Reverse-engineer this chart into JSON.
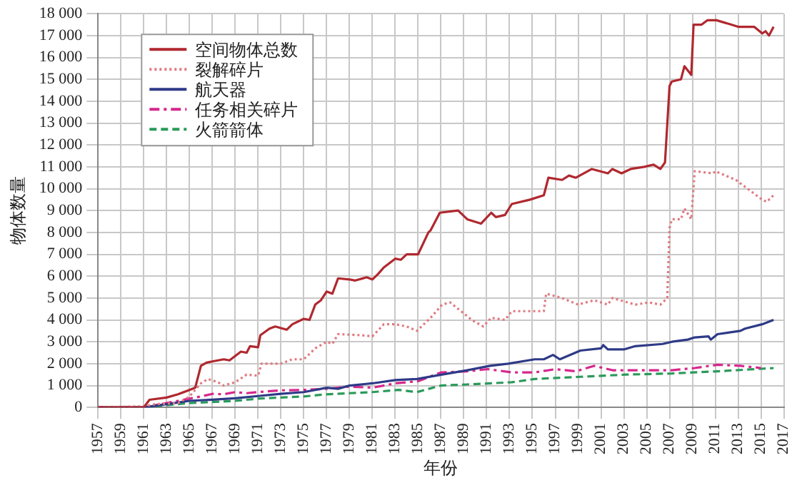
{
  "chart_data": {
    "type": "line",
    "xlabel": "年份",
    "ylabel": "物体数量",
    "xlim": [
      1957,
      2017
    ],
    "ylim": [
      0,
      18000
    ],
    "xticks": [
      1957,
      1959,
      1961,
      1963,
      1965,
      1967,
      1969,
      1971,
      1973,
      1975,
      1977,
      1979,
      1981,
      1983,
      1985,
      1987,
      1989,
      1991,
      1993,
      1995,
      1997,
      1999,
      2001,
      2003,
      2005,
      2007,
      2009,
      2011,
      2013,
      2015,
      2017
    ],
    "yticks": [
      {
        "value": 0,
        "label": "0"
      },
      {
        "value": 1000,
        "label": "1 000"
      },
      {
        "value": 2000,
        "label": "2 000"
      },
      {
        "value": 3000,
        "label": "3 000"
      },
      {
        "value": 4000,
        "label": "4 000"
      },
      {
        "value": 5000,
        "label": "5 000"
      },
      {
        "value": 6000,
        "label": "6 000"
      },
      {
        "value": 7000,
        "label": "7 000"
      },
      {
        "value": 8000,
        "label": "8 000"
      },
      {
        "value": 9000,
        "label": "9 000"
      },
      {
        "value": 10000,
        "label": "10 000"
      },
      {
        "value": 11000,
        "label": "11 000"
      },
      {
        "value": 12000,
        "label": "12 000"
      },
      {
        "value": 13000,
        "label": "13 000"
      },
      {
        "value": 14000,
        "label": "14 000"
      },
      {
        "value": 15000,
        "label": "15 000"
      },
      {
        "value": 16000,
        "label": "16 000"
      },
      {
        "value": 17000,
        "label": "17 000"
      },
      {
        "value": 18000,
        "label": "18 000"
      }
    ],
    "grid": true,
    "legend": "top left",
    "marker": "none",
    "series": [
      {
        "name": "空间物体总数",
        "color": "#b0282f",
        "line_style": "solid",
        "x": [
          1957,
          1961,
          1961.5,
          1963,
          1964,
          1965,
          1965.5,
          1966,
          1966.5,
          1967,
          1968,
          1968.5,
          1969.5,
          1970,
          1970.3,
          1971,
          1971.2,
          1972,
          1972.5,
          1973.5,
          1974,
          1975,
          1975.5,
          1976,
          1976.5,
          1977,
          1977.5,
          1978,
          1979,
          1979.5,
          1980.5,
          1981,
          1981.5,
          1982,
          1983,
          1983.5,
          1984,
          1985,
          1985.9,
          1986.1,
          1986.9,
          1988.5,
          1989.3,
          1990.5,
          1991.4,
          1991.8,
          1992.6,
          1993.2,
          1994.8,
          1996.0,
          1996.4,
          1997.6,
          1998.2,
          1998.8,
          2000.2,
          2001.6,
          2002.0,
          2002.8,
          2003.6,
          2004.8,
          2005.6,
          2006.2,
          2006.6,
          2007.0,
          2007.2,
          2008.0,
          2008.3,
          2008.9,
          2009.1,
          2009.8,
          2010.3,
          2011.1,
          2012.4,
          2013.0,
          2014.4,
          2015.1,
          2015.4,
          2015.7,
          2016.1
        ],
        "values": [
          0,
          0,
          350,
          450,
          600,
          800,
          900,
          1900,
          2050,
          2100,
          2200,
          2150,
          2550,
          2500,
          2800,
          2750,
          3300,
          3600,
          3700,
          3550,
          3800,
          4050,
          4000,
          4700,
          4900,
          5300,
          5200,
          5900,
          5850,
          5800,
          5950,
          5850,
          6100,
          6400,
          6800,
          6750,
          7000,
          7000,
          8000,
          8100,
          8900,
          9000,
          8600,
          8400,
          8900,
          8700,
          8800,
          9300,
          9500,
          9700,
          10500,
          10400,
          10600,
          10500,
          10900,
          10700,
          10900,
          10700,
          10900,
          11000,
          11100,
          10900,
          11200,
          14700,
          14900,
          15000,
          15600,
          15200,
          17500,
          17500,
          17700,
          17700,
          17500,
          17400,
          17400,
          17100,
          17200,
          17000,
          17400
        ]
      },
      {
        "name": "裂解碎片",
        "color": "#e07a80",
        "line_style": "dotted",
        "x": [
          1957,
          1961,
          1962,
          1964,
          1965,
          1966,
          1966.6,
          1967.5,
          1968,
          1969,
          1970,
          1971,
          1971.3,
          1973,
          1974,
          1975,
          1976,
          1977,
          1977.5,
          1978,
          1980,
          1981,
          1982,
          1983,
          1984,
          1984.9,
          1986.1,
          1987.1,
          1987.8,
          1989.7,
          1990.7,
          1991.4,
          1992.6,
          1993.2,
          1996.0,
          1996.2,
          1997.6,
          1999.0,
          2000.4,
          2001.6,
          2002.0,
          2004.0,
          2005.2,
          2006.2,
          2006.8,
          2007.0,
          2007.2,
          2008.0,
          2008.3,
          2008.9,
          2009.2,
          2010.8,
          2011.0,
          2012.8,
          2015.1,
          2015.5,
          2016.1
        ],
        "values": [
          0,
          50,
          150,
          200,
          500,
          1100,
          1300,
          1150,
          1000,
          1150,
          1500,
          1450,
          2000,
          2000,
          2200,
          2200,
          2700,
          3000,
          2900,
          3350,
          3300,
          3250,
          3800,
          3800,
          3700,
          3500,
          4100,
          4700,
          4800,
          4000,
          3700,
          4100,
          4000,
          4400,
          4400,
          5200,
          5000,
          4700,
          4900,
          4700,
          5000,
          4700,
          4800,
          4700,
          5000,
          8200,
          8600,
          8600,
          9100,
          8600,
          10800,
          10700,
          10800,
          10400,
          9500,
          9400,
          9700
        ]
      },
      {
        "name": "航天器",
        "color": "#2e3a87",
        "line_style": "solid",
        "x": [
          1957,
          1961,
          1963,
          1965,
          1967,
          1969,
          1971,
          1973,
          1975,
          1977,
          1978,
          1979,
          1981,
          1983,
          1984.9,
          1987.1,
          1989.3,
          1991.3,
          1992.9,
          1995.2,
          1996.0,
          1996.8,
          1997.4,
          1999.2,
          2001.0,
          2001.2,
          2001.6,
          2003.0,
          2004.0,
          2006.4,
          2007.2,
          2008.6,
          2009.2,
          2010.4,
          2010.6,
          2011.2,
          2013.2,
          2013.6,
          2015.1,
          2016.1
        ],
        "values": [
          0,
          0,
          150,
          300,
          350,
          420,
          520,
          620,
          700,
          900,
          850,
          1000,
          1100,
          1250,
          1300,
          1500,
          1700,
          1900,
          2000,
          2200,
          2200,
          2400,
          2200,
          2600,
          2700,
          2850,
          2650,
          2650,
          2800,
          2900,
          3000,
          3100,
          3200,
          3250,
          3100,
          3350,
          3500,
          3600,
          3800,
          4000
        ]
      },
      {
        "name": "任务相关碎片",
        "color": "#d6278d",
        "line_style": "dashdot",
        "x": [
          1957,
          1961,
          1962,
          1963,
          1964,
          1965,
          1966,
          1967,
          1968,
          1969,
          1970,
          1971,
          1973,
          1975,
          1977,
          1979,
          1981,
          1983,
          1985,
          1987,
          1989.3,
          1991.1,
          1993.2,
          1995.2,
          1997,
          1998.8,
          2000.4,
          2002,
          2007.2,
          2009.2,
          2011.2,
          2013.2,
          2015
        ],
        "values": [
          0,
          0,
          100,
          200,
          300,
          400,
          500,
          620,
          600,
          700,
          650,
          700,
          780,
          800,
          850,
          950,
          900,
          1100,
          1200,
          1600,
          1650,
          1750,
          1600,
          1600,
          1750,
          1650,
          1900,
          1700,
          1700,
          1800,
          1950,
          1900,
          1800
        ]
      },
      {
        "name": "火箭箭体",
        "color": "#2a9a5a",
        "line_style": "dashed",
        "x": [
          1957,
          1961,
          1963,
          1965,
          1967,
          1969,
          1971,
          1973,
          1975,
          1977,
          1979,
          1981,
          1983.3,
          1984.9,
          1987,
          1989.3,
          1993.2,
          1995.2,
          1999.2,
          2003.2,
          2007.2,
          2011.2,
          2016.1
        ],
        "values": [
          0,
          0,
          100,
          200,
          250,
          300,
          400,
          450,
          500,
          600,
          650,
          700,
          800,
          700,
          1000,
          1050,
          1150,
          1300,
          1400,
          1500,
          1550,
          1650,
          1800
        ]
      }
    ]
  }
}
